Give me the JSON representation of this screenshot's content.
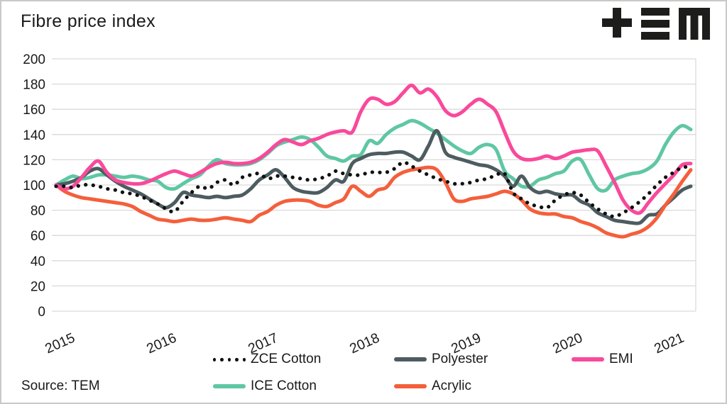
{
  "title": "Fibre price index",
  "source": "Source: TEM",
  "logo_name": "tem-logo",
  "colors": {
    "text": "#1a1a1a",
    "grid": "#d9d9d9",
    "frame_border": "#c9c9c9",
    "zce_cotton": "#111111",
    "polyester": "#4d5c60",
    "emi": "#f9499b",
    "ice_cotton": "#5fc7a3",
    "acrylic": "#f45f3b"
  },
  "chart_data": {
    "type": "line",
    "title": "Fibre price index",
    "xlabel": "",
    "ylabel": "",
    "x_tick_labels": [
      "2015",
      "2016",
      "2017",
      "2018",
      "2019",
      "2020",
      "2021"
    ],
    "x_unit": "monthly points, Jan 2015 - Apr 2021",
    "ylim": [
      0,
      200
    ],
    "y_tick_step": 20,
    "grid": true,
    "legend_position": "bottom",
    "series": [
      {
        "name": "ZCE Cotton",
        "style": "dotted",
        "color": "#111111",
        "values": [
          99,
          99,
          98,
          100,
          100,
          99,
          97,
          96,
          94,
          93,
          91,
          88,
          85,
          81,
          79,
          87,
          94,
          99,
          97,
          102,
          104,
          100,
          106,
          108,
          109,
          105,
          107,
          107,
          106,
          105,
          104,
          105,
          107,
          111,
          109,
          108,
          108,
          110,
          110,
          110,
          113,
          118,
          115,
          111,
          108,
          105,
          103,
          101,
          101,
          102,
          104,
          105,
          108,
          109,
          94,
          89,
          85,
          83,
          82,
          88,
          92,
          94,
          92,
          86,
          81,
          77,
          75,
          78,
          82,
          87,
          93,
          100,
          106,
          110,
          114,
          114
        ]
      },
      {
        "name": "Polyester",
        "style": "solid",
        "color": "#4d5c60",
        "values": [
          100,
          101,
          103,
          106,
          111,
          113,
          108,
          103,
          99,
          96,
          93,
          89,
          85,
          82,
          86,
          94,
          92,
          91,
          90,
          91,
          90,
          91,
          92,
          97,
          104,
          108,
          112,
          106,
          98,
          95,
          94,
          94,
          98,
          104,
          103,
          117,
          121,
          124,
          125,
          125,
          126,
          126,
          123,
          120,
          131,
          143,
          126,
          122,
          120,
          118,
          116,
          115,
          112,
          107,
          99,
          107,
          98,
          94,
          95,
          93,
          92,
          92,
          87,
          84,
          78,
          75,
          72,
          71,
          70,
          70,
          76,
          77,
          84,
          90,
          96,
          99
        ]
      },
      {
        "name": "EMI",
        "style": "solid",
        "color": "#f9499b",
        "values": [
          100,
          97,
          99,
          106,
          114,
          119,
          110,
          104,
          102,
          101,
          101,
          103,
          106,
          109,
          111,
          109,
          107,
          110,
          114,
          117,
          118,
          117,
          117,
          118,
          121,
          126,
          132,
          136,
          134,
          132,
          135,
          137,
          140,
          142,
          143,
          142,
          158,
          168,
          168,
          164,
          166,
          173,
          179,
          173,
          176,
          170,
          159,
          155,
          158,
          164,
          168,
          164,
          158,
          142,
          127,
          121,
          120,
          121,
          123,
          121,
          123,
          126,
          127,
          128,
          127,
          115,
          102,
          88,
          80,
          78,
          86,
          94,
          101,
          108,
          116,
          117
        ]
      },
      {
        "name": "ICE Cotton",
        "style": "solid",
        "color": "#5fc7a3",
        "values": [
          100,
          104,
          107,
          105,
          106,
          108,
          108,
          107,
          106,
          107,
          106,
          104,
          103,
          98,
          97,
          101,
          105,
          108,
          115,
          120,
          117,
          116,
          116,
          117,
          120,
          125,
          131,
          134,
          136,
          138,
          136,
          130,
          123,
          121,
          119,
          123,
          124,
          135,
          133,
          140,
          145,
          148,
          151,
          149,
          145,
          141,
          136,
          131,
          127,
          125,
          130,
          132,
          128,
          111,
          105,
          99,
          99,
          104,
          106,
          109,
          111,
          119,
          120,
          108,
          97,
          96,
          104,
          107,
          109,
          110,
          113,
          119,
          132,
          142,
          147,
          144
        ]
      },
      {
        "name": "Acrylic",
        "style": "solid",
        "color": "#f45f3b",
        "values": [
          100,
          95,
          92,
          90,
          89,
          88,
          87,
          86,
          85,
          83,
          79,
          76,
          73,
          72,
          71,
          72,
          73,
          72,
          72,
          73,
          74,
          73,
          72,
          71,
          76,
          79,
          84,
          87,
          88,
          88,
          87,
          84,
          83,
          86,
          89,
          99,
          95,
          91,
          96,
          98,
          106,
          110,
          112,
          113,
          114,
          112,
          102,
          89,
          87,
          89,
          90,
          91,
          93,
          95,
          93,
          88,
          81,
          78,
          77,
          77,
          75,
          74,
          71,
          69,
          66,
          62,
          60,
          59,
          61,
          63,
          67,
          74,
          84,
          93,
          103,
          112
        ]
      }
    ],
    "legend_rows": [
      [
        "ZCE Cotton",
        "Polyester",
        "EMI"
      ],
      [
        "ICE Cotton",
        "Acrylic"
      ]
    ],
    "draw_order": [
      "ICE Cotton",
      "Polyester",
      "Acrylic",
      "EMI",
      "ZCE Cotton"
    ]
  }
}
